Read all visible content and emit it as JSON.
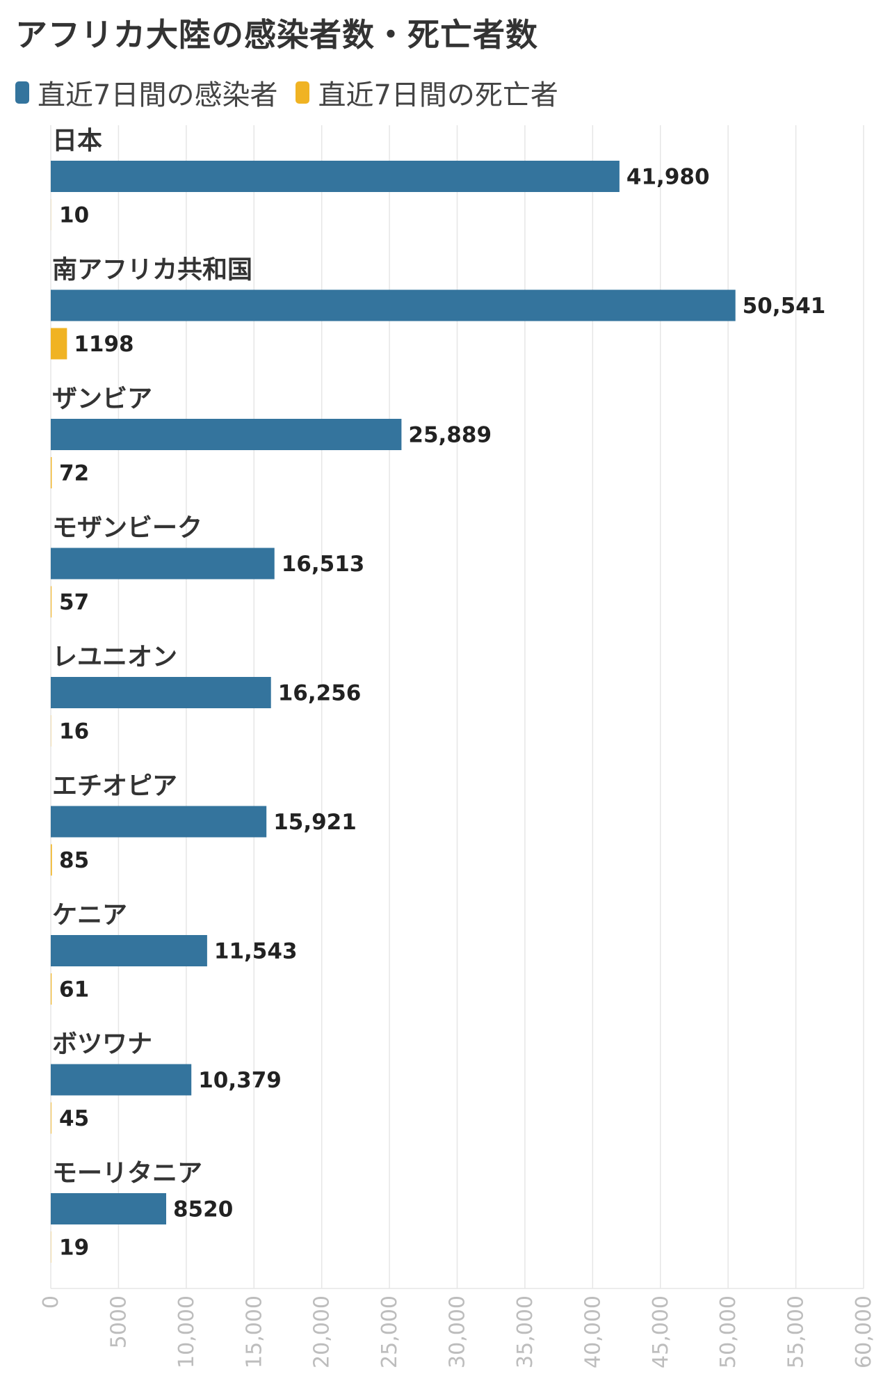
{
  "title": "アフリカ大陸の感染者数・死亡者数",
  "legend": [
    {
      "label": "直近7日間の感染者",
      "color": "#34749d"
    },
    {
      "label": "直近7日間の死亡者",
      "color": "#f0b323"
    }
  ],
  "chart_data": {
    "type": "bar",
    "orientation": "horizontal",
    "title": "アフリカ大陸の感染者数・死亡者数",
    "categories": [
      "日本",
      "南アフリカ共和国",
      "ザンビア",
      "モザンビーク",
      "レユニオン",
      "エチオピア",
      "ケニア",
      "ボツワナ",
      "モーリタニア"
    ],
    "series": [
      {
        "name": "直近7日間の感染者",
        "color": "#34749d",
        "values": [
          41980,
          50541,
          25889,
          16513,
          16256,
          15921,
          11543,
          10379,
          8520
        ],
        "labels": [
          "41,980",
          "50,541",
          "25,889",
          "16,513",
          "16,256",
          "15,921",
          "11,543",
          "10,379",
          "8520"
        ]
      },
      {
        "name": "直近7日間の死亡者",
        "color": "#f0b323",
        "values": [
          10,
          1198,
          72,
          57,
          16,
          85,
          61,
          45,
          19
        ],
        "labels": [
          "10",
          "1198",
          "72",
          "57",
          "16",
          "85",
          "61",
          "45",
          "19"
        ]
      }
    ],
    "xlim": [
      0,
      60000
    ],
    "ticks": [
      0,
      5000,
      10000,
      15000,
      20000,
      25000,
      30000,
      35000,
      40000,
      45000,
      50000,
      55000,
      60000
    ],
    "tick_labels": [
      "0",
      "5000",
      "10,000",
      "15,000",
      "20,000",
      "25,000",
      "30,000",
      "35,000",
      "40,000",
      "45,000",
      "50,000",
      "55,000",
      "60,000"
    ],
    "grid": true,
    "legend_position": "top-left"
  }
}
